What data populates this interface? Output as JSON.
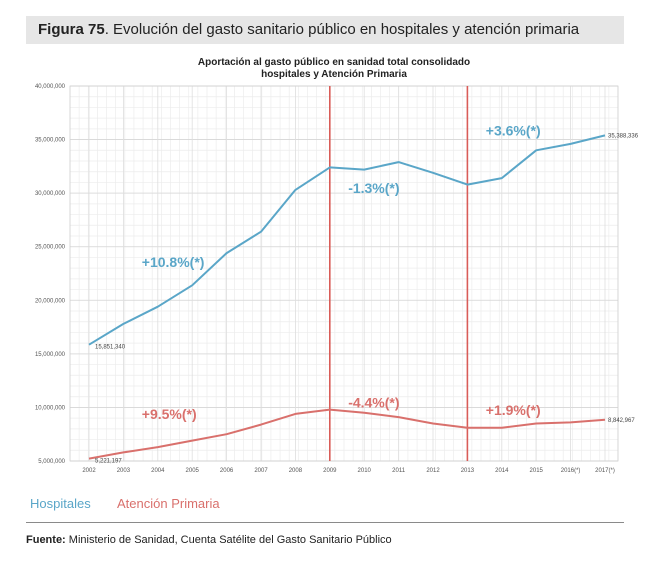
{
  "header": {
    "figure_label": "Figura 75",
    "title_rest": ". Evolución del gasto sanitario público en hospitales y atención primaria"
  },
  "chart_data": {
    "type": "line",
    "title": "Aportación al gasto público en sanidad total consolidado hospitales y Atención Primaria",
    "title_lines": [
      "Aportación al gasto público en sanidad total consolidado",
      "hospitales y Atención Primaria"
    ],
    "categories": [
      "2002",
      "2003",
      "2004",
      "2005",
      "2006",
      "2007",
      "2008",
      "2009",
      "2010",
      "2011",
      "2012",
      "2013",
      "2014",
      "2015",
      "2016(*)",
      "2017(*)"
    ],
    "y_ticks": [
      "40,000,000",
      "35,000,000",
      "30,000,000",
      "25,000,000",
      "20,000,000",
      "15,000,000",
      "10,000,000",
      "5,000,000"
    ],
    "ylim": [
      5000000,
      40000000
    ],
    "grid": true,
    "series": [
      {
        "name": "Hospitales",
        "color": "#5aa6c8",
        "values": [
          15851340,
          17800000,
          19400000,
          21400000,
          24400000,
          26400000,
          30300000,
          32400000,
          32200000,
          32900000,
          31900000,
          30800000,
          31400000,
          34000000,
          34600000,
          35388336
        ]
      },
      {
        "name": "Atención Primaria",
        "color": "#d9706c",
        "values": [
          5221197,
          5800000,
          6300000,
          6900000,
          7500000,
          8400000,
          9400000,
          9800000,
          9500000,
          9100000,
          8500000,
          8100000,
          8100000,
          8500000,
          8600000,
          8842967
        ]
      }
    ],
    "vlines": [
      "2009",
      "2013"
    ],
    "vline_color": "#d95c58",
    "point_labels": [
      {
        "text": "15,851,340",
        "series": 0,
        "index": 0
      },
      {
        "text": "35,388,336",
        "series": 0,
        "index": 15
      },
      {
        "text": "5,221,197",
        "series": 1,
        "index": 0
      },
      {
        "text": "8,842,967",
        "series": 1,
        "index": 15
      }
    ],
    "annotations": [
      {
        "text": "+10.8%(*)",
        "color": "#5aa6c8",
        "x": "2004",
        "y": 23100000
      },
      {
        "text": "-1.3%(*)",
        "color": "#5aa6c8",
        "x": "2010",
        "y": 30000000
      },
      {
        "text": "+3.6%(*)",
        "color": "#5aa6c8",
        "x": "2014",
        "y": 35400000
      },
      {
        "text": "+9.5%(*)",
        "color": "#d9706c",
        "x": "2004",
        "y": 8900000
      },
      {
        "text": "-4.4%(*)",
        "color": "#d9706c",
        "x": "2010",
        "y": 10000000
      },
      {
        "text": "+1.9%(*)",
        "color": "#d9706c",
        "x": "2014",
        "y": 9300000
      }
    ]
  },
  "source": {
    "label": "Fuente:",
    "text": " Ministerio de Sanidad, Cuenta Satélite del Gasto Sanitario Público"
  }
}
